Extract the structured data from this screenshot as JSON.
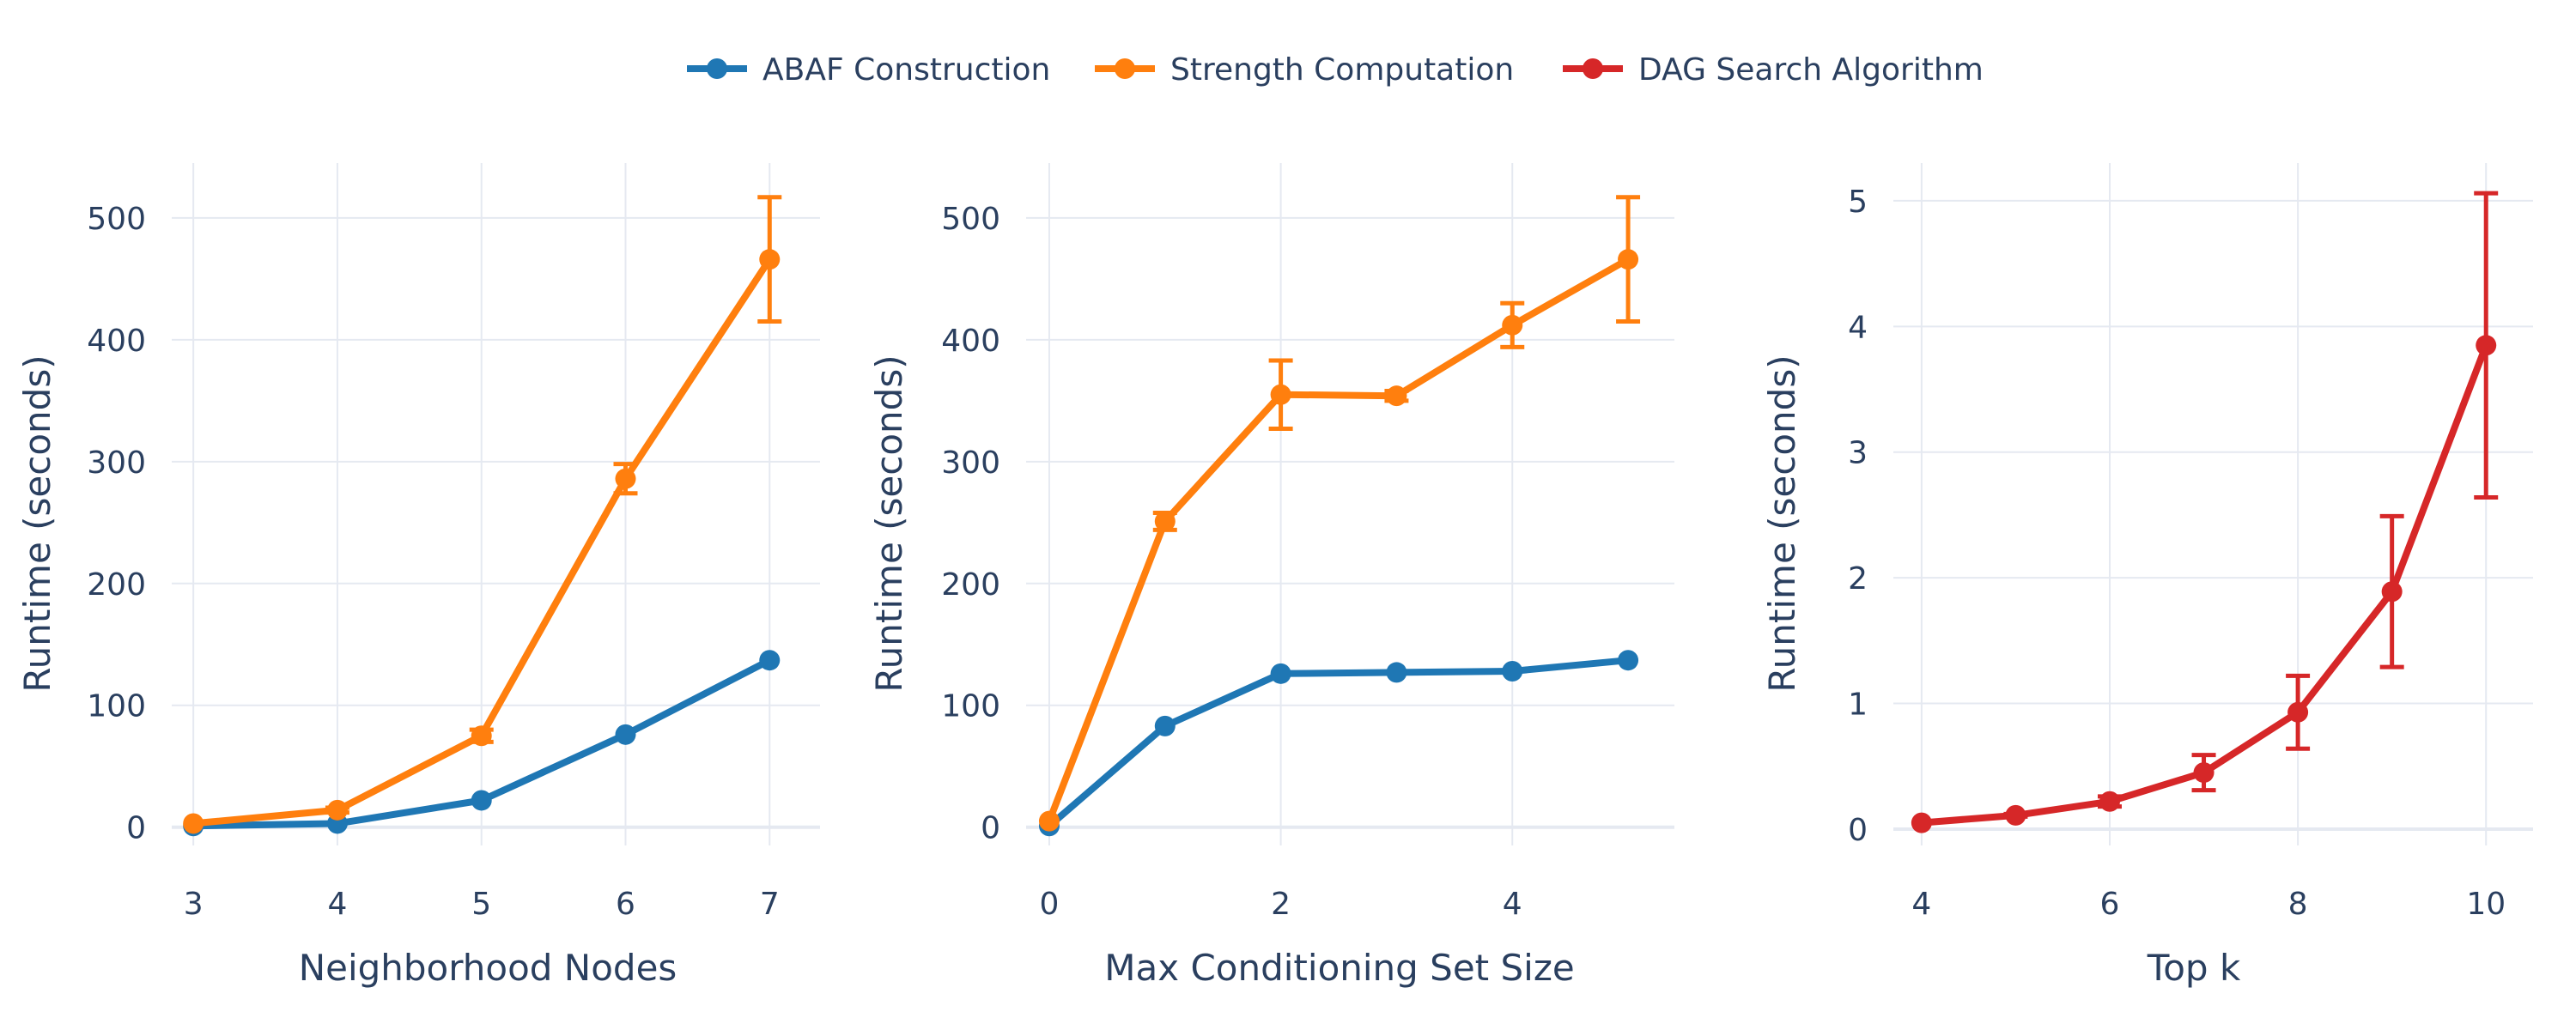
{
  "legend": {
    "items": [
      {
        "label": "ABAF Construction",
        "color": "#1f77b4"
      },
      {
        "label": "Strength Computation",
        "color": "#ff7f0e"
      },
      {
        "label": "DAG Search Algorithm",
        "color": "#d62728"
      }
    ]
  },
  "chart_data": [
    {
      "type": "line",
      "xlabel": "Neighborhood Nodes",
      "ylabel": "Runtime (seconds)",
      "xlim": [
        2.85,
        7.35
      ],
      "ylim": [
        -15,
        545
      ],
      "xticks": [
        3,
        4,
        5,
        6,
        7
      ],
      "yticks": [
        0,
        100,
        200,
        300,
        400,
        500
      ],
      "grid": true,
      "series": [
        {
          "name": "ABAF Construction",
          "color": "#1f77b4",
          "x": [
            3,
            4,
            5,
            6,
            7
          ],
          "values": [
            1,
            3,
            22,
            76,
            137
          ],
          "error": [
            0,
            0,
            0,
            0,
            0
          ]
        },
        {
          "name": "Strength Computation",
          "color": "#ff7f0e",
          "x": [
            3,
            4,
            5,
            6,
            7
          ],
          "values": [
            3,
            14,
            75,
            286,
            466
          ],
          "error": [
            0,
            2,
            5,
            12,
            51
          ]
        }
      ]
    },
    {
      "type": "line",
      "xlabel": "Max Conditioning Set Size",
      "ylabel": "Runtime (seconds)",
      "xlim": [
        -0.2,
        5.4
      ],
      "ylim": [
        -15,
        545
      ],
      "xticks": [
        0,
        2,
        4
      ],
      "yticks": [
        0,
        100,
        200,
        300,
        400,
        500
      ],
      "grid": true,
      "series": [
        {
          "name": "ABAF Construction",
          "color": "#1f77b4",
          "x": [
            0,
            1,
            2,
            3,
            4,
            5
          ],
          "values": [
            1,
            83,
            126,
            127,
            128,
            137
          ],
          "error": [
            0,
            0,
            0,
            0,
            0,
            0
          ]
        },
        {
          "name": "Strength Computation",
          "color": "#ff7f0e",
          "x": [
            0,
            1,
            2,
            3,
            4,
            5
          ],
          "values": [
            5,
            251,
            355,
            354,
            412,
            466
          ],
          "error": [
            0,
            7,
            28,
            4,
            18,
            51
          ]
        }
      ]
    },
    {
      "type": "line",
      "xlabel": "Top k",
      "ylabel": "Runtime (seconds)",
      "xlim": [
        3.7,
        10.5
      ],
      "ylim": [
        -0.13,
        5.3
      ],
      "xticks": [
        4,
        6,
        8,
        10
      ],
      "yticks": [
        0,
        1,
        2,
        3,
        4,
        5
      ],
      "grid": true,
      "series": [
        {
          "name": "DAG Search Algorithm",
          "color": "#d62728",
          "x": [
            4,
            5,
            6,
            7,
            8,
            9,
            10
          ],
          "values": [
            0.05,
            0.11,
            0.22,
            0.45,
            0.93,
            1.89,
            3.85
          ],
          "error": [
            0,
            0.01,
            0.04,
            0.14,
            0.29,
            0.6,
            1.21
          ]
        }
      ]
    }
  ]
}
